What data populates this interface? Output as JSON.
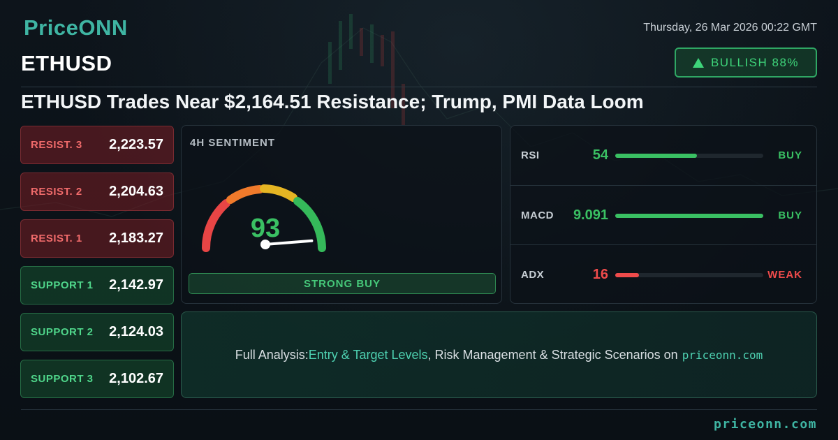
{
  "brand": {
    "logo": "PriceONN",
    "footer_site": "priceonn.com"
  },
  "header": {
    "datetime": "Thursday, 26 Mar 2026 00:22 GMT",
    "symbol": "ETHUSD",
    "bias_label": "BULLISH 88%"
  },
  "headline": "ETHUSD Trades Near $2,164.51 Resistance; Trump, PMI Data Loom",
  "levels": [
    {
      "label": "RESIST. 3",
      "value": "2,223.57",
      "kind": "resistance"
    },
    {
      "label": "RESIST. 2",
      "value": "2,204.63",
      "kind": "resistance"
    },
    {
      "label": "RESIST. 1",
      "value": "2,183.27",
      "kind": "resistance"
    },
    {
      "label": "SUPPORT 1",
      "value": "2,142.97",
      "kind": "support"
    },
    {
      "label": "SUPPORT 2",
      "value": "2,124.03",
      "kind": "support"
    },
    {
      "label": "SUPPORT 3",
      "value": "2,102.67",
      "kind": "support"
    }
  ],
  "sentiment": {
    "title": "4H SENTIMENT",
    "score": "93",
    "score_value": 93,
    "signal": "STRONG BUY"
  },
  "indicators": [
    {
      "name": "RSI",
      "value": "54",
      "fill": 0.55,
      "signal": "BUY",
      "color": "#3ac063"
    },
    {
      "name": "MACD",
      "value": "9.091",
      "fill": 1.0,
      "signal": "BUY",
      "color": "#3ac063"
    },
    {
      "name": "ADX",
      "value": "16",
      "fill": 0.16,
      "signal": "WEAK",
      "color": "#ef4b4b"
    }
  ],
  "cta": {
    "prefix": "Full Analysis: ",
    "highlight": "Entry & Target Levels",
    "middle": ", Risk Management & Strategic Scenarios on ",
    "site": "priceonn.com"
  },
  "colors": {
    "accent": "#3fb5a3",
    "buy": "#3ac063",
    "sell": "#ef4b4b"
  }
}
